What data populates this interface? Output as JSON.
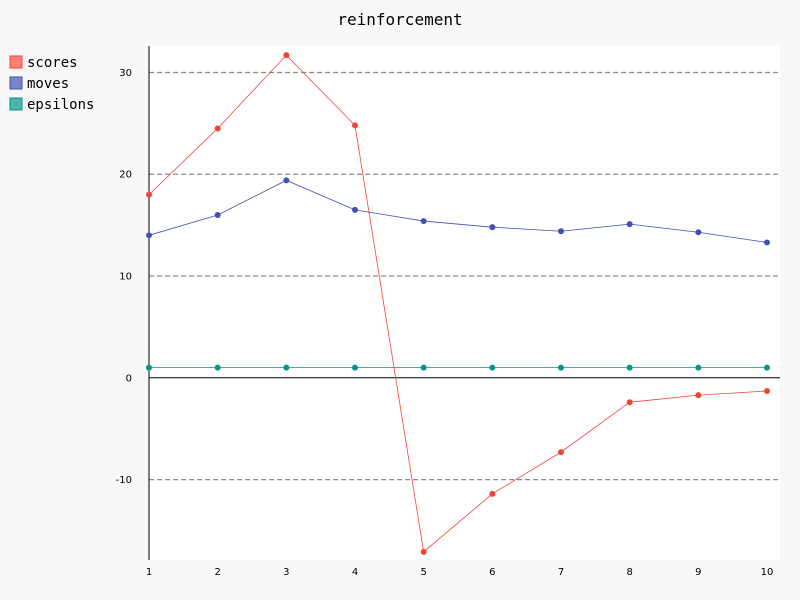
{
  "chart_data": {
    "type": "line",
    "title": "reinforcement",
    "xlabel": "",
    "ylabel": "",
    "x": [
      1,
      2,
      3,
      4,
      5,
      6,
      7,
      8,
      9,
      10
    ],
    "x_ticks": [
      "1",
      "2",
      "3",
      "4",
      "5",
      "6",
      "7",
      "8",
      "9",
      "10"
    ],
    "y_ticks": [
      -10,
      0,
      10,
      20,
      30
    ],
    "ylim": [
      -17.9,
      32.6
    ],
    "grid": true,
    "legend": "top-left",
    "series": [
      {
        "name": "scores",
        "color": "#f44336",
        "legend_color": "#f88379",
        "values": [
          18.0,
          24.5,
          31.7,
          24.8,
          -17.1,
          -11.4,
          -7.3,
          -2.4,
          -1.7,
          -1.3
        ]
      },
      {
        "name": "moves",
        "color": "#3f51b5",
        "legend_color": "#7986cb",
        "values": [
          14.0,
          16.0,
          19.4,
          16.5,
          15.4,
          14.8,
          14.4,
          15.1,
          14.3,
          13.3
        ]
      },
      {
        "name": "epsilons",
        "color": "#009688",
        "legend_color": "#4db6ac",
        "values": [
          1.0,
          1.0,
          1.0,
          1.0,
          1.0,
          1.0,
          1.0,
          1.0,
          1.0,
          1.0
        ]
      }
    ]
  }
}
